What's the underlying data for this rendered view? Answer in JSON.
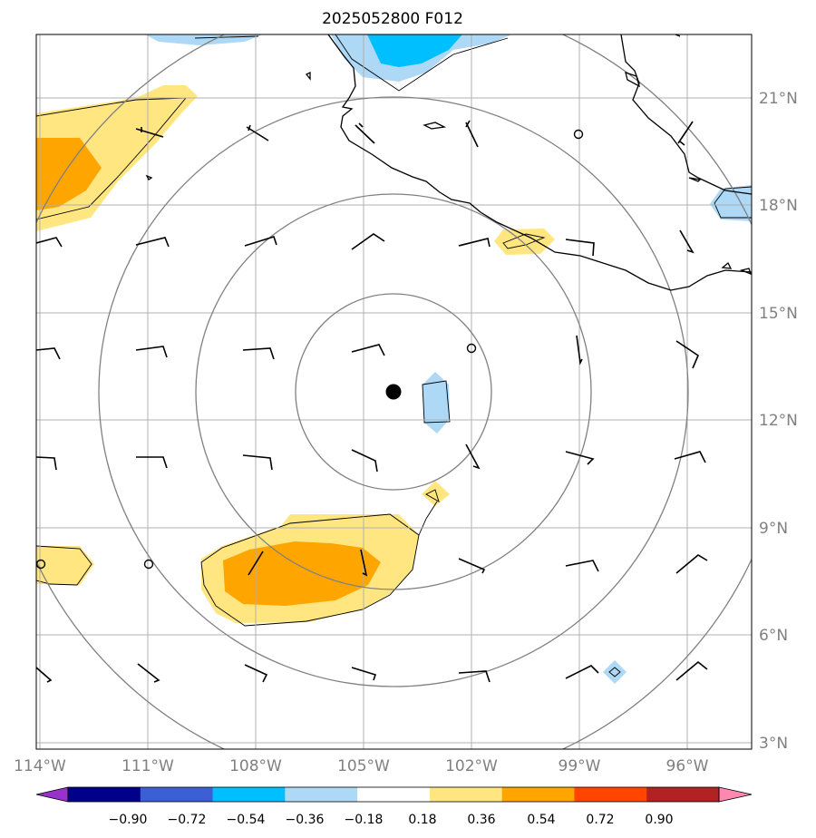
{
  "title": "2025052800 F012",
  "lat_labels": [
    "21°N",
    "18°N",
    "15°N",
    "12°N",
    "9°N",
    "6°N",
    "3°N"
  ],
  "lon_labels": [
    "114°W",
    "111°W",
    "108°W",
    "105°W",
    "102°W",
    "99°W",
    "96°W"
  ],
  "colorbar": {
    "tick_labels": [
      "−0.90",
      "−0.72",
      "−0.54",
      "−0.36",
      "−0.18",
      "0.18",
      "0.36",
      "0.54",
      "0.72",
      "0.90"
    ],
    "colors": [
      "#9932cc",
      "#00008b",
      "#3d5fd6",
      "#00bfff",
      "#add8f6",
      "#ffffff",
      "#ffe680",
      "#ffa500",
      "#ff4500",
      "#b22222",
      "#ff88b0"
    ]
  },
  "colors": {
    "grid": "#b0b0b0",
    "range_ring": "#808080",
    "coast": "#000000",
    "positive_light": "#ffe680",
    "positive_dark": "#ffa500",
    "negative_light": "#add8f6",
    "negative_dark": "#00bfff"
  },
  "storm_center": {
    "lon": -104.2,
    "lat": 12.8
  }
}
